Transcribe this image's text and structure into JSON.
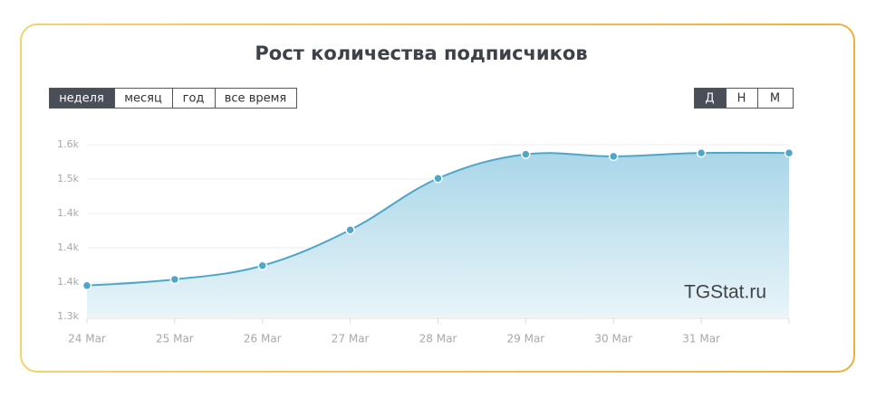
{
  "chart_data": {
    "type": "area",
    "title": "Рост количества подписчиков",
    "period_buttons": [
      "неделя",
      "месяц",
      "год",
      "все время"
    ],
    "interval_buttons": [
      "Д",
      "Н",
      "М"
    ],
    "watermark": "TGStat.ru",
    "categories": [
      "24 Mar",
      "25 Mar",
      "26 Mar",
      "27 Mar",
      "28 Mar",
      "29 Mar",
      "30 Mar",
      "31 Mar",
      null
    ],
    "values": [
      1345,
      1354,
      1374,
      1426,
      1501,
      1536,
      1533,
      1538,
      1538
    ],
    "color": "#4ea6c8",
    "ylim": [
      1300,
      1550
    ],
    "yticks": [
      {
        "value": 1300,
        "label": "1.3k"
      },
      {
        "value": 1350,
        "label": "1.4k"
      },
      {
        "value": 1400,
        "label": "1.4k"
      },
      {
        "value": 1450,
        "label": "1.4k"
      },
      {
        "value": 1500,
        "label": "1.5k"
      },
      {
        "value": 1550,
        "label": "1.6k"
      }
    ],
    "grid": true
  }
}
